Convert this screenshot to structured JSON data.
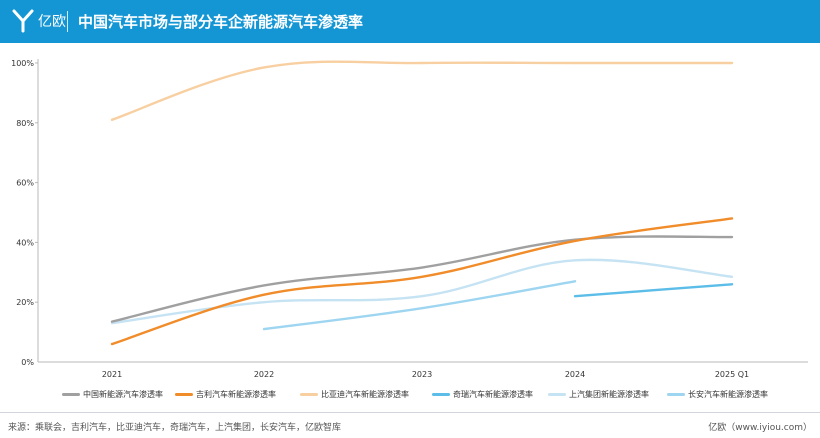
{
  "header": {
    "logo_text": "亿欧",
    "title": "中国汽车市场与部分车企新能源汽车渗透率"
  },
  "colors": {
    "header_bg": "#1596d4"
  },
  "chart_data": {
    "type": "line",
    "title": "中国汽车市场与部分车企新能源汽车渗透率",
    "categories": [
      "2021",
      "2022",
      "2023",
      "2024",
      "2025 Q1"
    ],
    "ylim": [
      0,
      100
    ],
    "yticks": [
      "0%",
      "20%",
      "40%",
      "60%",
      "80%",
      "100%"
    ],
    "ytick_values": [
      0,
      20,
      40,
      60,
      80,
      100
    ],
    "xlabel": "",
    "ylabel": "",
    "grid": false,
    "legend_position": "bottom",
    "series": [
      {
        "name": "中国新能源汽车渗透率",
        "color": "#a0a0a0",
        "values": [
          13.5,
          25.6,
          31.6,
          40.9,
          41.8
        ]
      },
      {
        "name": "吉利汽车新能源渗透率",
        "color": "#f08c2a",
        "values": [
          6,
          22.5,
          28.5,
          40.5,
          48
        ]
      },
      {
        "name": "比亚迪汽车新能源渗透率",
        "color": "#f8cfa0",
        "values": [
          81,
          98.5,
          100,
          100,
          100
        ]
      },
      {
        "name": "奇瑞汽车新能源渗透率",
        "color": "#5bbde8",
        "values": [
          null,
          null,
          null,
          22,
          26
        ]
      },
      {
        "name": "上汽集团新能源渗透率",
        "color": "#c5e3f3",
        "values": [
          13,
          20,
          22,
          34,
          28.5
        ]
      },
      {
        "name": "长安汽车新能源渗透率",
        "color": "#9ed5f0",
        "values": [
          null,
          11,
          18,
          27,
          null
        ]
      }
    ]
  },
  "footer": {
    "source": "来源：乘联会，吉利汽车，比亚迪汽车，奇瑞汽车，上汽集团，长安汽车，亿欧智库",
    "brand": "亿欧（www.iyiou.com）"
  }
}
